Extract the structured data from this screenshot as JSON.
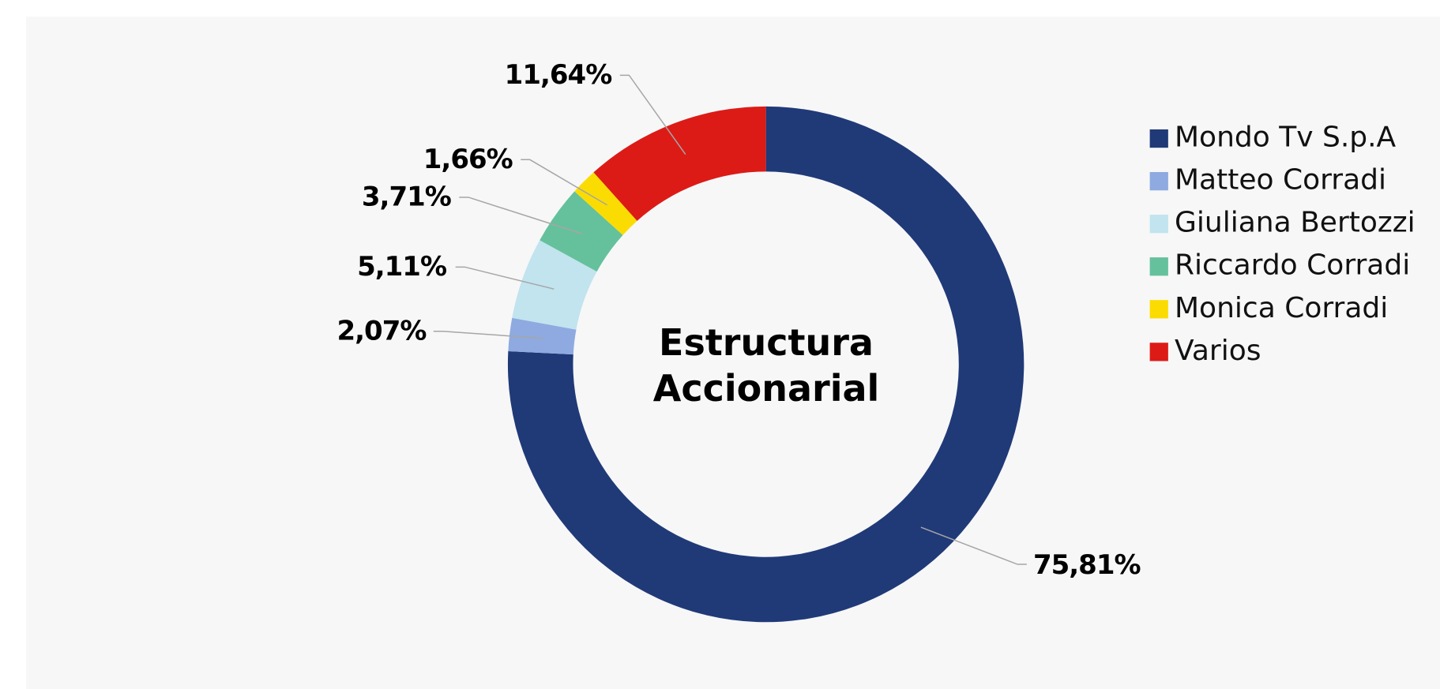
{
  "chart_data": {
    "type": "donut",
    "title": "Estructura Accionarial",
    "categories": [
      "Mondo Tv S.p.A",
      "Matteo Corradi",
      "Giuliana Bertozzi",
      "Riccardo Corradi",
      "Monica Corradi",
      "Varios"
    ],
    "values": [
      75.81,
      2.07,
      5.11,
      3.71,
      1.66,
      11.64
    ],
    "value_labels": [
      "75,81%",
      "2,07%",
      "5,11%",
      "3,71%",
      "1,66%",
      "11,64%"
    ],
    "colors": [
      "#203a78",
      "#8eaae0",
      "#c1e4ee",
      "#64c19c",
      "#fbdc02",
      "#dc1b17"
    ],
    "legend": "right"
  }
}
